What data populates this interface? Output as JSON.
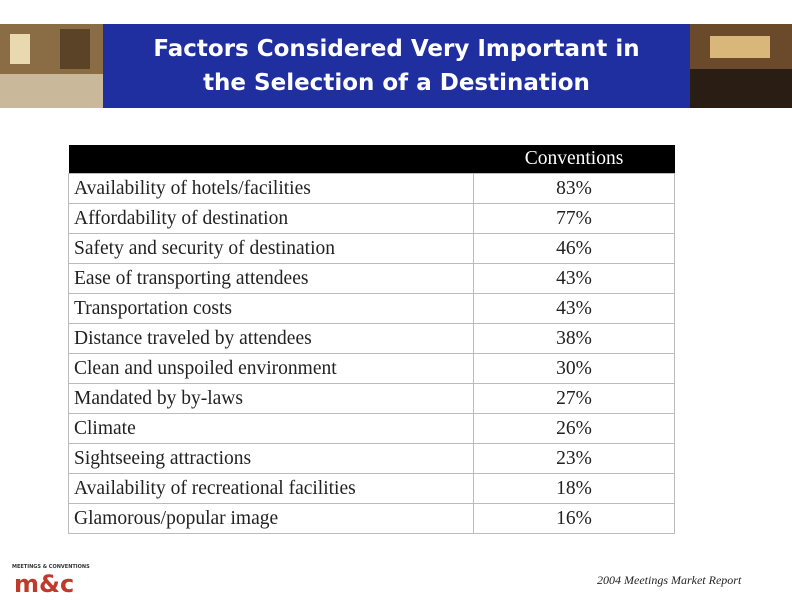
{
  "header": {
    "title_lines": [
      "Factors Considered Very Important in",
      "the Selection of a Destination"
    ]
  },
  "table": {
    "columns": [
      "",
      "Conventions"
    ],
    "rows": [
      [
        "Availability of hotels/facilities",
        "83%"
      ],
      [
        "Affordability of destination",
        "77%"
      ],
      [
        "Safety and security of destination",
        "46%"
      ],
      [
        "Ease of transporting attendees",
        "43%"
      ],
      [
        "Transportation costs",
        "43%"
      ],
      [
        "Distance traveled by attendees",
        "38%"
      ],
      [
        "Clean and unspoiled environment",
        "30%"
      ],
      [
        "Mandated by by-laws",
        "27%"
      ],
      [
        "Climate",
        "26%"
      ],
      [
        "Sightseeing attractions",
        "23%"
      ],
      [
        "Availability of recreational facilities",
        "18%"
      ],
      [
        "Glamorous/popular image",
        "16%"
      ]
    ]
  },
  "footer": {
    "logo_caption": "MEETINGS & CONVENTIONS",
    "logo_mark": "m&c",
    "source": "2004 Meetings Market Report"
  }
}
